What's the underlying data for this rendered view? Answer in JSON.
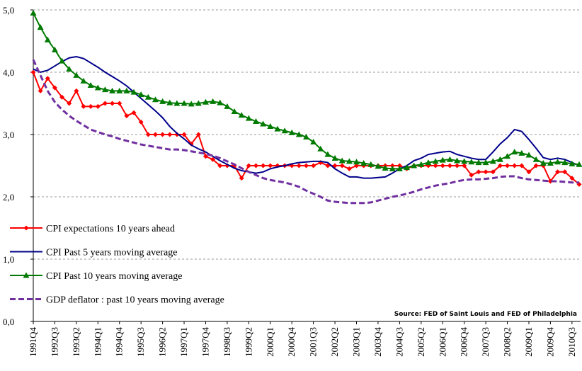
{
  "chart_data": {
    "type": "line",
    "source": "Source: FED of Saint Louis and FED of Philadelphia",
    "categories": [
      "1991Q4",
      null,
      null,
      "1992Q3",
      null,
      null,
      "1993Q2",
      null,
      null,
      "1994Q1",
      null,
      null,
      "1994Q4",
      null,
      null,
      "1995Q3",
      null,
      null,
      "1996Q2",
      null,
      null,
      "1997Q1",
      null,
      null,
      "1997Q4",
      null,
      null,
      "1998Q3",
      null,
      null,
      "1999Q2",
      null,
      null,
      "2000Q1",
      null,
      null,
      "2000Q4",
      null,
      null,
      "2001Q3",
      null,
      null,
      "2002Q2",
      null,
      null,
      "2003Q1",
      null,
      null,
      "2003Q4",
      null,
      null,
      "2004Q3",
      null,
      null,
      "2005Q2",
      null,
      null,
      "2006Q1",
      null,
      null,
      "2006Q4",
      null,
      null,
      "2007Q3",
      null,
      null,
      "2008Q2",
      null,
      null,
      "2009Q1",
      null,
      null,
      "2009Q4",
      null,
      null,
      "2010Q3",
      null
    ],
    "ylim": [
      0,
      5
    ],
    "yticks": [
      {
        "value": 0,
        "label": "0,0"
      },
      {
        "value": 1,
        "label": "1,0"
      },
      {
        "value": 2,
        "label": "2,0"
      },
      {
        "value": 3,
        "label": "3,0"
      },
      {
        "value": 4,
        "label": "4,0"
      },
      {
        "value": 5,
        "label": "5,0"
      }
    ],
    "grid": true,
    "legend": "lower-left",
    "series": [
      {
        "name": "CPI expectations 10 years ahead",
        "color": "#ff0000",
        "marker": "diamond",
        "dash": false,
        "values": [
          4.0,
          3.7,
          3.9,
          3.75,
          3.6,
          3.5,
          3.7,
          3.45,
          3.45,
          3.45,
          3.5,
          3.5,
          3.5,
          3.3,
          3.35,
          3.2,
          3.0,
          3.0,
          3.0,
          3.0,
          3.0,
          3.0,
          2.85,
          3.0,
          2.65,
          2.6,
          2.5,
          2.5,
          2.5,
          2.3,
          2.5,
          2.5,
          2.5,
          2.5,
          2.5,
          2.5,
          2.5,
          2.5,
          2.5,
          2.5,
          2.55,
          2.5,
          2.5,
          2.5,
          2.45,
          2.5,
          2.5,
          2.5,
          2.5,
          2.5,
          2.5,
          2.5,
          2.45,
          2.5,
          2.5,
          2.5,
          2.5,
          2.5,
          2.5,
          2.5,
          2.5,
          2.35,
          2.4,
          2.4,
          2.4,
          2.5,
          2.5,
          2.5,
          2.5,
          2.4,
          2.5,
          2.5,
          2.25,
          2.4,
          2.4,
          2.3,
          2.2
        ]
      },
      {
        "name": "CPI Past 5 years moving average",
        "color": "#00008b",
        "marker": "none",
        "dash": false,
        "values": [
          4.05,
          4.0,
          4.03,
          4.1,
          4.17,
          4.23,
          4.25,
          4.22,
          4.15,
          4.08,
          4.0,
          3.93,
          3.86,
          3.78,
          3.68,
          3.58,
          3.48,
          3.38,
          3.27,
          3.13,
          3.02,
          2.93,
          2.83,
          2.77,
          2.72,
          2.65,
          2.58,
          2.52,
          2.46,
          2.42,
          2.4,
          2.38,
          2.4,
          2.45,
          2.48,
          2.5,
          2.53,
          2.55,
          2.56,
          2.57,
          2.57,
          2.55,
          2.45,
          2.38,
          2.32,
          2.32,
          2.3,
          2.3,
          2.31,
          2.32,
          2.38,
          2.45,
          2.5,
          2.58,
          2.62,
          2.68,
          2.7,
          2.72,
          2.73,
          2.68,
          2.65,
          2.62,
          2.6,
          2.6,
          2.72,
          2.85,
          2.95,
          3.08,
          3.05,
          2.92,
          2.78,
          2.63,
          2.6,
          2.62,
          2.6,
          2.55,
          2.5
        ]
      },
      {
        "name": "CPI Past 10 years moving average",
        "color": "#007a00",
        "marker": "triangle",
        "dash": false,
        "values": [
          4.95,
          4.72,
          4.52,
          4.36,
          4.18,
          4.05,
          3.95,
          3.86,
          3.79,
          3.75,
          3.72,
          3.7,
          3.7,
          3.7,
          3.68,
          3.64,
          3.6,
          3.56,
          3.53,
          3.51,
          3.5,
          3.5,
          3.49,
          3.5,
          3.52,
          3.53,
          3.51,
          3.45,
          3.37,
          3.31,
          3.26,
          3.21,
          3.17,
          3.13,
          3.09,
          3.06,
          3.03,
          3.0,
          2.96,
          2.88,
          2.77,
          2.68,
          2.62,
          2.58,
          2.57,
          2.56,
          2.54,
          2.52,
          2.49,
          2.46,
          2.45,
          2.45,
          2.47,
          2.5,
          2.52,
          2.55,
          2.57,
          2.59,
          2.6,
          2.58,
          2.57,
          2.56,
          2.55,
          2.55,
          2.57,
          2.6,
          2.65,
          2.72,
          2.7,
          2.67,
          2.6,
          2.54,
          2.54,
          2.56,
          2.55,
          2.53,
          2.52
        ]
      },
      {
        "name": "GDP deflator : past 10 years moving average",
        "color": "#7030a0",
        "marker": "none",
        "dash": true,
        "values": [
          4.2,
          3.95,
          3.7,
          3.52,
          3.4,
          3.3,
          3.22,
          3.15,
          3.08,
          3.04,
          3.0,
          2.97,
          2.93,
          2.9,
          2.87,
          2.84,
          2.82,
          2.8,
          2.78,
          2.76,
          2.76,
          2.75,
          2.73,
          2.71,
          2.69,
          2.66,
          2.62,
          2.57,
          2.52,
          2.46,
          2.4,
          2.35,
          2.3,
          2.27,
          2.25,
          2.23,
          2.2,
          2.16,
          2.1,
          2.05,
          2.0,
          1.94,
          1.92,
          1.91,
          1.9,
          1.9,
          1.9,
          1.91,
          1.94,
          1.97,
          2.0,
          2.02,
          2.05,
          2.08,
          2.12,
          2.15,
          2.18,
          2.2,
          2.22,
          2.25,
          2.27,
          2.28,
          2.28,
          2.29,
          2.3,
          2.32,
          2.33,
          2.33,
          2.3,
          2.28,
          2.27,
          2.26,
          2.25,
          2.25,
          2.24,
          2.23,
          2.23
        ]
      }
    ]
  }
}
